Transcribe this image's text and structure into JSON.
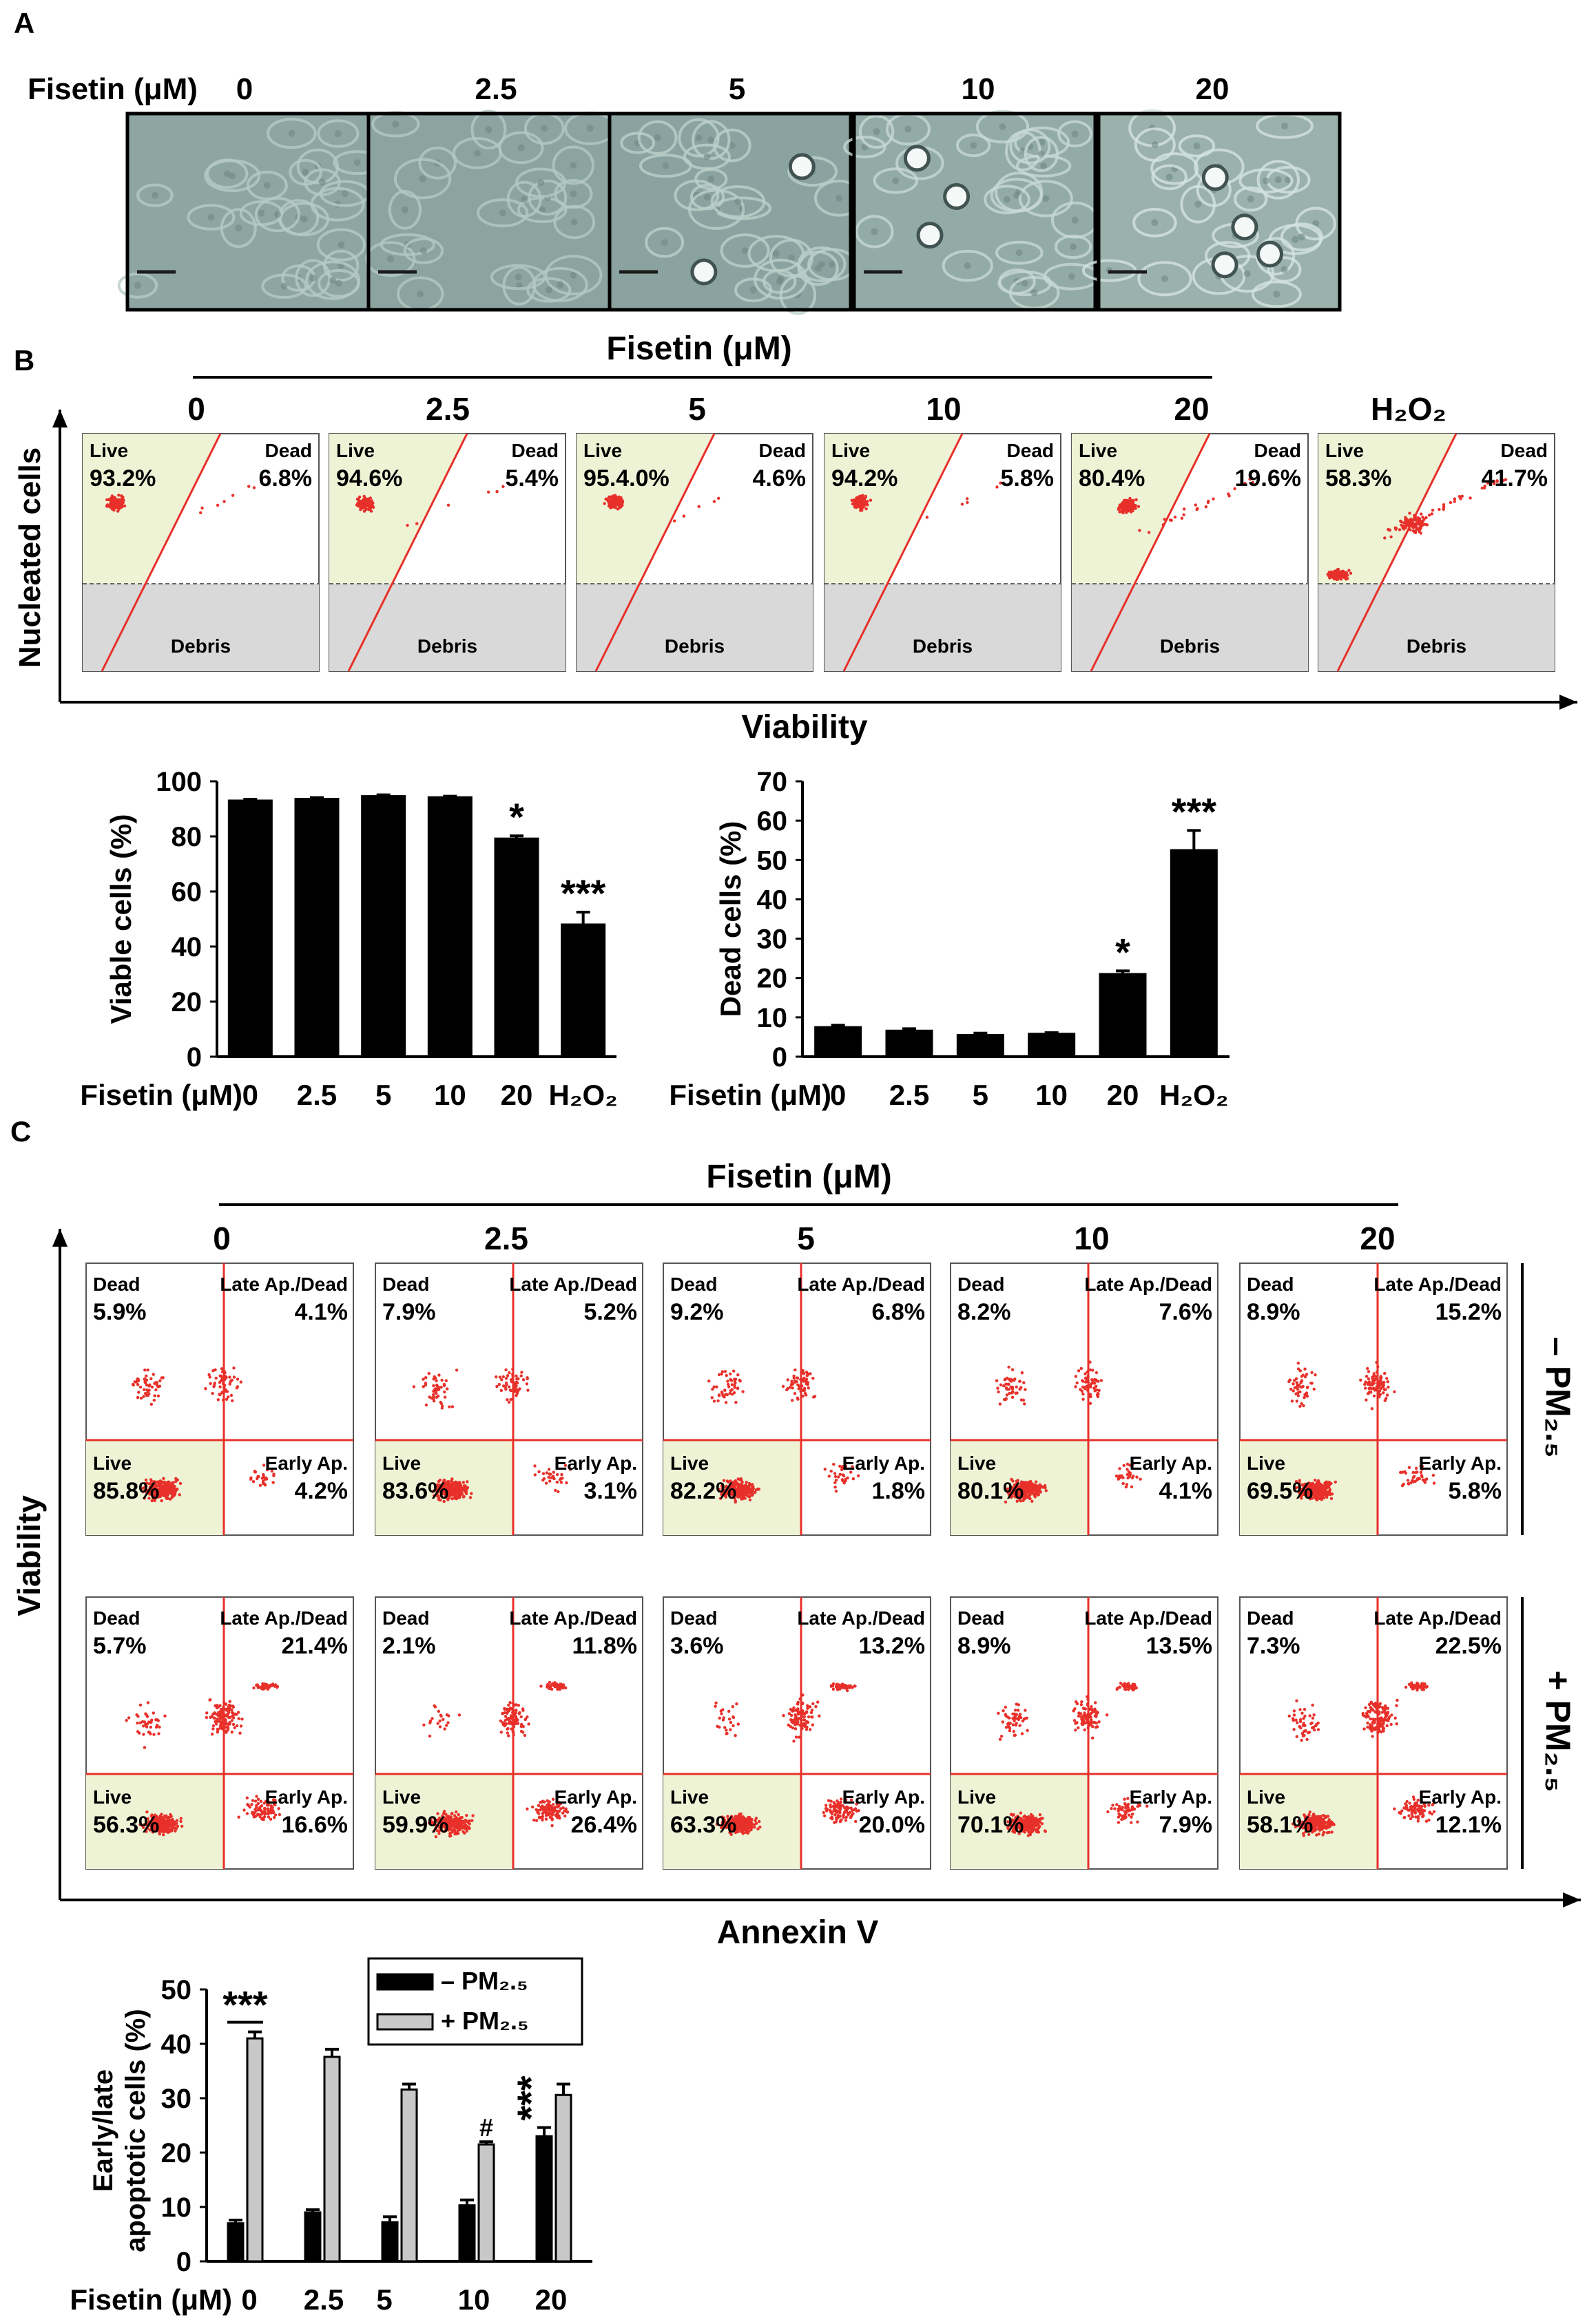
{
  "figure": {
    "colors": {
      "live": "#eef3d6",
      "debris": "#d9d9d9",
      "gate": "#e8302a",
      "dot": "#e8302a",
      "bar_black": "#000000",
      "bar_gray": "#c8c8c8"
    },
    "panel_a": {
      "letter": "A",
      "label": "Fisetin (μM)",
      "concentrations": [
        "0",
        "2.5",
        "5",
        "10",
        "20"
      ]
    },
    "panel_b": {
      "letter": "B",
      "header": "Fisetin (μM)",
      "columns": [
        "0",
        "2.5",
        "5",
        "10",
        "20"
      ],
      "h2o2_label": "H₂O₂",
      "y_axis": "Nucleated cells",
      "x_axis": "Viability",
      "live_label": "Live",
      "dead_label": "Dead",
      "debris_label": "Debris",
      "plots": [
        {
          "live": "93.2%",
          "dead": "6.8%"
        },
        {
          "live": "94.6%",
          "dead": "5.4%"
        },
        {
          "live": "95.4.0%",
          "dead": "4.6%"
        },
        {
          "live": "94.2%",
          "dead": "5.8%"
        },
        {
          "live": "80.4%",
          "dead": "19.6%"
        },
        {
          "live": "58.3%",
          "dead": "41.7%"
        }
      ]
    },
    "panel_c": {
      "letter": "C",
      "header": "Fisetin (μM)",
      "columns": [
        "0",
        "2.5",
        "5",
        "10",
        "20"
      ],
      "y_axis": "Viability",
      "x_axis": "Annexin V",
      "dead_label": "Dead",
      "late_label": "Late Ap./Dead",
      "live_label": "Live",
      "early_label": "Early Ap.",
      "row_minus": "– PM₂.₅",
      "row_plus": "+ PM₂.₅",
      "rows": [
        [
          {
            "dead": "5.9%",
            "late": "4.1%",
            "live": "85.8%",
            "early": "4.2%"
          },
          {
            "dead": "7.9%",
            "late": "5.2%",
            "live": "83.6%",
            "early": "3.1%"
          },
          {
            "dead": "9.2%",
            "late": "6.8%",
            "live": "82.2%",
            "early": "1.8%"
          },
          {
            "dead": "8.2%",
            "late": "7.6%",
            "live": "80.1%",
            "early": "4.1%"
          },
          {
            "dead": "8.9%",
            "late": "15.2%",
            "live": "69.5%",
            "early": "5.8%"
          }
        ],
        [
          {
            "dead": "5.7%",
            "late": "21.4%",
            "live": "56.3%",
            "early": "16.6%"
          },
          {
            "dead": "2.1%",
            "late": "11.8%",
            "live": "59.9%",
            "early": "26.4%"
          },
          {
            "dead": "3.6%",
            "late": "13.2%",
            "live": "63.3%",
            "early": "20.0%"
          },
          {
            "dead": "8.9%",
            "late": "13.5%",
            "live": "70.1%",
            "early": "7.9%"
          },
          {
            "dead": "7.3%",
            "late": "22.5%",
            "live": "58.1%",
            "early": "12.1%"
          }
        ]
      ]
    }
  },
  "chart_data": [
    {
      "type": "bar",
      "id": "viable",
      "categories": [
        "0",
        "2.5",
        "5",
        "10",
        "20",
        "H₂O₂"
      ],
      "values": [
        93,
        93.6,
        94.6,
        94.2,
        79.2,
        48
      ],
      "errors": [
        0.5,
        0.5,
        0.5,
        0.4,
        1,
        4.5
      ],
      "significance": [
        "",
        "",
        "",
        "",
        "*",
        "***"
      ],
      "ylabel": "Viable cells (%)",
      "xlabel": "Fisetin (μM)",
      "ylim": [
        0,
        100
      ],
      "yticks": [
        "0",
        "20",
        "40",
        "60",
        "80",
        "100"
      ]
    },
    {
      "type": "bar",
      "id": "dead",
      "categories": [
        "0",
        "2.5",
        "5",
        "10",
        "20",
        "H₂O₂"
      ],
      "values": [
        7.5,
        6.6,
        5.5,
        5.8,
        21,
        52.5
      ],
      "errors": [
        0.5,
        0.5,
        0.5,
        0.3,
        0.8,
        5
      ],
      "significance": [
        "",
        "",
        "",
        "",
        "*",
        "***"
      ],
      "ylabel": "Dead cells (%)",
      "xlabel": "Fisetin (μM)",
      "ylim": [
        0,
        70
      ],
      "yticks": [
        "0",
        "10",
        "20",
        "30",
        "40",
        "50",
        "60",
        "70"
      ]
    },
    {
      "type": "bar",
      "id": "apoptotic",
      "categories": [
        "0",
        "2.5",
        "5",
        "10",
        "20"
      ],
      "series": [
        {
          "name": "– PM₂.₅",
          "values": [
            7,
            9,
            7.2,
            10.3,
            23
          ],
          "errors": [
            0.6,
            0.5,
            1,
            1,
            1.6
          ],
          "color": "#000000"
        },
        {
          "name": "+ PM₂.₅",
          "values": [
            41,
            37.6,
            31.6,
            21.5,
            30.6
          ],
          "errors": [
            1.2,
            1.4,
            1,
            0.5,
            2
          ],
          "color": "#c8c8c8"
        }
      ],
      "annotations": [
        {
          "label": "***",
          "category": "0",
          "type": "bracket"
        },
        {
          "label": "#",
          "category": "10",
          "series": 1
        },
        {
          "label": "***",
          "category": "20",
          "series": 0,
          "vertical": true
        }
      ],
      "ylabel": [
        "Early/late",
        "apoptotic cells (%)"
      ],
      "xlabel": "Fisetin (μM)",
      "ylim": [
        0,
        50
      ],
      "yticks": [
        "0",
        "10",
        "20",
        "30",
        "40",
        "50"
      ]
    }
  ]
}
